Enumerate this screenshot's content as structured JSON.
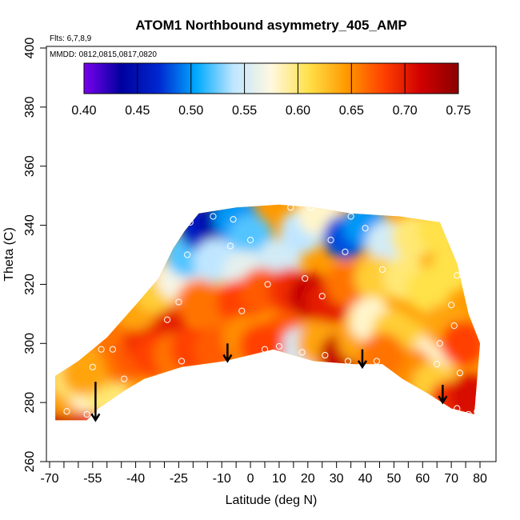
{
  "chart_data": {
    "type": "heatmap",
    "title": "ATOM1 Northbound asymmetry_405_AMP",
    "flights_note": "Flts: 6,7,8,9",
    "dates_note": "MMDD: 0812,0815,0817,0820",
    "xlabel": "Latitude (deg N)",
    "ylabel": "Theta (C)",
    "xlim": [
      -70,
      80
    ],
    "ylim": [
      260,
      400
    ],
    "x_ticks": [
      -70,
      -55,
      -40,
      -25,
      -10,
      0,
      10,
      20,
      30,
      40,
      50,
      60,
      70,
      80
    ],
    "x_tick_labels": [
      "-70",
      "-55",
      "-40",
      "-25",
      "-10",
      "0",
      "10",
      "20",
      "30",
      "40",
      "50",
      "60",
      "70",
      "80"
    ],
    "x_minor_ticks": [
      -65,
      -60,
      -50,
      -45,
      -35,
      -30,
      -20,
      -15,
      -5,
      5,
      15,
      25,
      35,
      45,
      55,
      65,
      75
    ],
    "y_ticks": [
      260,
      280,
      300,
      320,
      340,
      360,
      380,
      400
    ],
    "y_tick_labels": [
      "260",
      "280",
      "300",
      "320",
      "340",
      "360",
      "380",
      "400"
    ],
    "colorbar": {
      "range": [
        0.4,
        0.75
      ],
      "ticks": [
        0.4,
        0.45,
        0.5,
        0.55,
        0.6,
        0.65,
        0.7,
        0.75
      ],
      "tick_labels": [
        "0.40",
        "0.45",
        "0.50",
        "0.55",
        "0.60",
        "0.65",
        "0.70",
        "0.75"
      ],
      "colors": [
        "#7b00ee",
        "#00009e",
        "#0028d0",
        "#00aaff",
        "#c0e6ff",
        "#fff8e0",
        "#ffe14a",
        "#ff9a00",
        "#ff4000",
        "#d00000",
        "#8a0000"
      ]
    },
    "grid": false,
    "region": {
      "lower_boundary": [
        [
          -68,
          274
        ],
        [
          -57,
          274
        ],
        [
          -53,
          278
        ],
        [
          -44,
          284
        ],
        [
          -37,
          288
        ],
        [
          -24,
          292
        ],
        [
          -9,
          294
        ],
        [
          8,
          298
        ],
        [
          22,
          294
        ],
        [
          36,
          293
        ],
        [
          46,
          293
        ],
        [
          53,
          288
        ],
        [
          62,
          283
        ],
        [
          70,
          278
        ],
        [
          78,
          276
        ]
      ],
      "upper_boundary": [
        [
          -68,
          289
        ],
        [
          -60,
          294
        ],
        [
          -50,
          302
        ],
        [
          -40,
          313
        ],
        [
          -32,
          322
        ],
        [
          -27,
          332
        ],
        [
          -23,
          338
        ],
        [
          -18,
          344
        ],
        [
          -5,
          346
        ],
        [
          10,
          347
        ],
        [
          22,
          346
        ],
        [
          35,
          344
        ],
        [
          52,
          343
        ],
        [
          66,
          341
        ],
        [
          72,
          327
        ],
        [
          76,
          310
        ],
        [
          80,
          300
        ]
      ]
    },
    "field": [
      {
        "lat": -67,
        "theta": 276,
        "value": 0.72
      },
      {
        "lat": -60,
        "theta": 276,
        "value": 0.72
      },
      {
        "lat": -54,
        "theta": 276,
        "value": 0.7
      },
      {
        "lat": -64,
        "theta": 283,
        "value": 0.64
      },
      {
        "lat": -56,
        "theta": 284,
        "value": 0.58
      },
      {
        "lat": -50,
        "theta": 283,
        "value": 0.6
      },
      {
        "lat": -62,
        "theta": 289,
        "value": 0.6
      },
      {
        "lat": -52,
        "theta": 292,
        "value": 0.62
      },
      {
        "lat": -45,
        "theta": 294,
        "value": 0.66
      },
      {
        "lat": -48,
        "theta": 302,
        "value": 0.66
      },
      {
        "lat": -40,
        "theta": 296,
        "value": 0.67
      },
      {
        "lat": -36,
        "theta": 301,
        "value": 0.69
      },
      {
        "lat": -30,
        "theta": 306,
        "value": 0.7
      },
      {
        "lat": -33,
        "theta": 296,
        "value": 0.68
      },
      {
        "lat": -26,
        "theta": 296,
        "value": 0.66
      },
      {
        "lat": -40,
        "theta": 312,
        "value": 0.64
      },
      {
        "lat": -33,
        "theta": 318,
        "value": 0.62
      },
      {
        "lat": -25,
        "theta": 322,
        "value": 0.57
      },
      {
        "lat": -22,
        "theta": 330,
        "value": 0.52
      },
      {
        "lat": -17,
        "theta": 339,
        "value": 0.46
      },
      {
        "lat": -10,
        "theta": 341,
        "value": 0.44
      },
      {
        "lat": -5,
        "theta": 342,
        "value": 0.5
      },
      {
        "lat": 0,
        "theta": 336,
        "value": 0.52
      },
      {
        "lat": -12,
        "theta": 328,
        "value": 0.54
      },
      {
        "lat": -2,
        "theta": 324,
        "value": 0.56
      },
      {
        "lat": 10,
        "theta": 328,
        "value": 0.55
      },
      {
        "lat": 18,
        "theta": 338,
        "value": 0.54
      },
      {
        "lat": 24,
        "theta": 344,
        "value": 0.58
      },
      {
        "lat": 33,
        "theta": 336,
        "value": 0.48
      },
      {
        "lat": 40,
        "theta": 340,
        "value": 0.5
      },
      {
        "lat": 48,
        "theta": 334,
        "value": 0.55
      },
      {
        "lat": 57,
        "theta": 336,
        "value": 0.6
      },
      {
        "lat": 66,
        "theta": 338,
        "value": 0.61
      },
      {
        "lat": 70,
        "theta": 325,
        "value": 0.61
      },
      {
        "lat": -18,
        "theta": 314,
        "value": 0.66
      },
      {
        "lat": -10,
        "theta": 308,
        "value": 0.66
      },
      {
        "lat": -4,
        "theta": 314,
        "value": 0.68
      },
      {
        "lat": 4,
        "theta": 318,
        "value": 0.67
      },
      {
        "lat": 14,
        "theta": 318,
        "value": 0.69
      },
      {
        "lat": 21,
        "theta": 316,
        "value": 0.72
      },
      {
        "lat": 27,
        "theta": 314,
        "value": 0.7
      },
      {
        "lat": 34,
        "theta": 320,
        "value": 0.66
      },
      {
        "lat": 44,
        "theta": 322,
        "value": 0.62
      },
      {
        "lat": 54,
        "theta": 322,
        "value": 0.6
      },
      {
        "lat": 62,
        "theta": 318,
        "value": 0.61
      },
      {
        "lat": 12,
        "theta": 303,
        "value": 0.67
      },
      {
        "lat": 18,
        "theta": 298,
        "value": 0.55
      },
      {
        "lat": 24,
        "theta": 300,
        "value": 0.64
      },
      {
        "lat": 32,
        "theta": 296,
        "value": 0.72
      },
      {
        "lat": 38,
        "theta": 301,
        "value": 0.64
      },
      {
        "lat": 42,
        "theta": 308,
        "value": 0.58
      },
      {
        "lat": 50,
        "theta": 304,
        "value": 0.62
      },
      {
        "lat": 58,
        "theta": 300,
        "value": 0.62
      },
      {
        "lat": 64,
        "theta": 296,
        "value": 0.58
      },
      {
        "lat": 68,
        "theta": 306,
        "value": 0.64
      },
      {
        "lat": 74,
        "theta": 300,
        "value": 0.68
      },
      {
        "lat": -20,
        "theta": 298,
        "value": 0.68
      },
      {
        "lat": -12,
        "theta": 298,
        "value": 0.67
      },
      {
        "lat": -2,
        "theta": 302,
        "value": 0.65
      },
      {
        "lat": 4,
        "theta": 299,
        "value": 0.68
      },
      {
        "lat": 56,
        "theta": 291,
        "value": 0.65
      },
      {
        "lat": 64,
        "theta": 286,
        "value": 0.62
      },
      {
        "lat": 70,
        "theta": 280,
        "value": 0.69
      },
      {
        "lat": 77,
        "theta": 282,
        "value": 0.71
      },
      {
        "lat": 46,
        "theta": 296,
        "value": 0.66
      },
      {
        "lat": -58,
        "theta": 290,
        "value": 0.64
      }
    ],
    "sample_points": [
      {
        "lat": -64,
        "theta": 277
      },
      {
        "lat": -57,
        "theta": 276
      },
      {
        "lat": -55,
        "theta": 292
      },
      {
        "lat": -52,
        "theta": 298
      },
      {
        "lat": -50,
        "theta": 277
      },
      {
        "lat": -48,
        "theta": 298
      },
      {
        "lat": -44,
        "theta": 288
      },
      {
        "lat": -32,
        "theta": 287
      },
      {
        "lat": -29,
        "theta": 308
      },
      {
        "lat": -24,
        "theta": 294
      },
      {
        "lat": -25,
        "theta": 314
      },
      {
        "lat": -22,
        "theta": 330
      },
      {
        "lat": -21,
        "theta": 341
      },
      {
        "lat": -13,
        "theta": 343
      },
      {
        "lat": -7,
        "theta": 333
      },
      {
        "lat": -6,
        "theta": 342
      },
      {
        "lat": -3,
        "theta": 311
      },
      {
        "lat": 0,
        "theta": 335
      },
      {
        "lat": 5,
        "theta": 298
      },
      {
        "lat": 6,
        "theta": 320
      },
      {
        "lat": 10,
        "theta": 299
      },
      {
        "lat": 14,
        "theta": 346
      },
      {
        "lat": 18,
        "theta": 297
      },
      {
        "lat": 19,
        "theta": 322
      },
      {
        "lat": 21,
        "theta": 346
      },
      {
        "lat": 25,
        "theta": 316
      },
      {
        "lat": 26,
        "theta": 296
      },
      {
        "lat": 28,
        "theta": 335
      },
      {
        "lat": 33,
        "theta": 331
      },
      {
        "lat": 34,
        "theta": 294
      },
      {
        "lat": 35,
        "theta": 343
      },
      {
        "lat": 40,
        "theta": 339
      },
      {
        "lat": 44,
        "theta": 294
      },
      {
        "lat": 46,
        "theta": 325
      },
      {
        "lat": 65,
        "theta": 293
      },
      {
        "lat": 66,
        "theta": 300
      },
      {
        "lat": 70,
        "theta": 313
      },
      {
        "lat": 71,
        "theta": 306
      },
      {
        "lat": 72,
        "theta": 323
      },
      {
        "lat": 73,
        "theta": 290
      },
      {
        "lat": 72,
        "theta": 278
      },
      {
        "lat": 76,
        "theta": 276
      },
      {
        "lat": 79,
        "theta": 277
      }
    ],
    "arrows": [
      {
        "lat": -54,
        "theta_start": 287,
        "theta_end": 274
      },
      {
        "lat": -8,
        "theta_start": 300,
        "theta_end": 294
      },
      {
        "lat": 39,
        "theta_start": 298,
        "theta_end": 292
      },
      {
        "lat": 67,
        "theta_start": 286,
        "theta_end": 280
      }
    ]
  }
}
